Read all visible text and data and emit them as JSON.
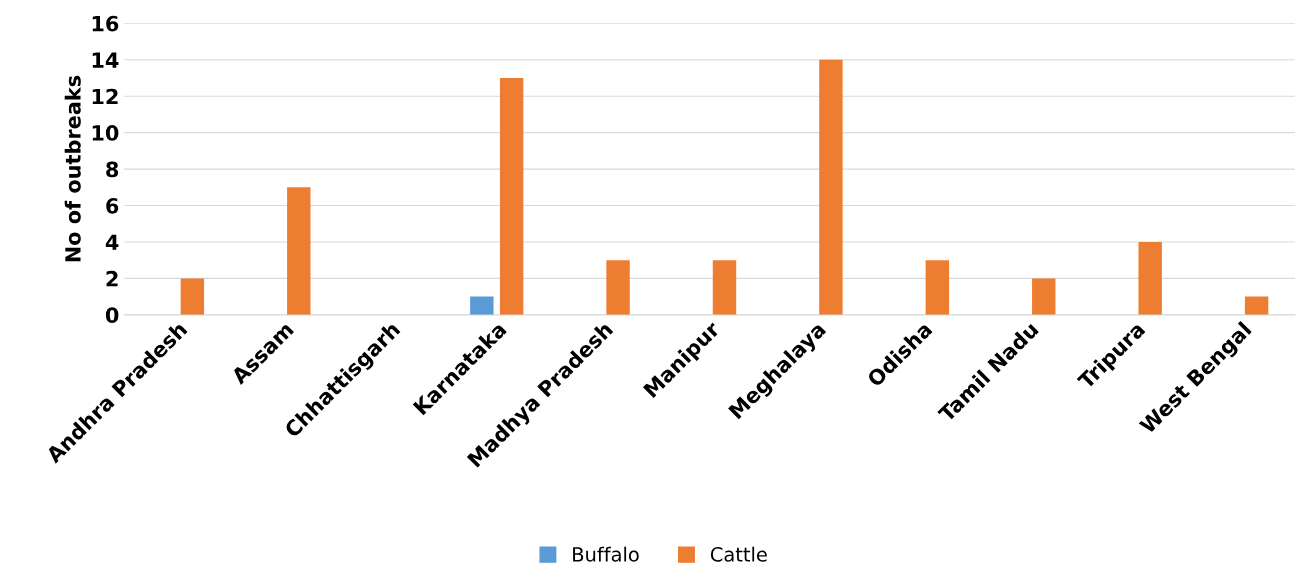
{
  "chart_data": {
    "type": "bar",
    "ylabel": "No of outbreaks",
    "categories": [
      "Andhra Pradesh",
      "Assam",
      "Chhattisgarh",
      "Karnataka",
      "Madhya Pradesh",
      "Manipur",
      "Meghalaya",
      "Odisha",
      "Tamil Nadu",
      "Tripura",
      "West Bengal"
    ],
    "series": [
      {
        "name": "Buffalo",
        "color": "#5b9bd5",
        "values": [
          null,
          null,
          null,
          1,
          null,
          null,
          null,
          null,
          null,
          null,
          null
        ]
      },
      {
        "name": "Cattle",
        "color": "#ed7d31",
        "values": [
          2,
          7,
          null,
          13,
          3,
          3,
          14,
          3,
          2,
          4,
          1
        ]
      }
    ],
    "ylim": [
      0,
      16
    ],
    "yticks": [
      0,
      2,
      4,
      6,
      8,
      10,
      12,
      14,
      16
    ],
    "grid": "y",
    "legend": "bottom"
  }
}
